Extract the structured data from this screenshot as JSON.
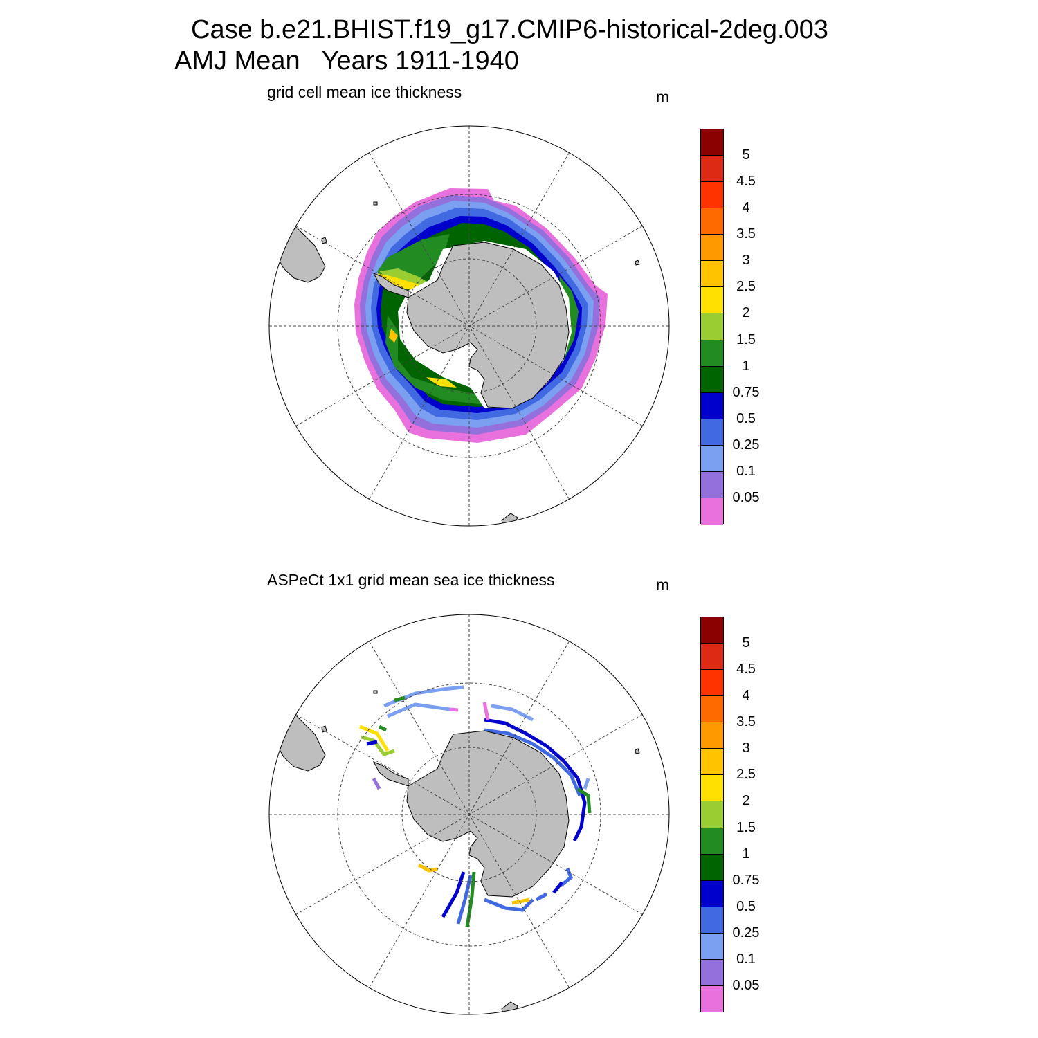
{
  "title": {
    "line1": "Case b.e21.BHIST.f19_g17.CMIP6-historical-2deg.003",
    "line2": "AMJ Mean   Years 1911-1940"
  },
  "colorbar": {
    "colors": [
      "#e871dd",
      "#9370db",
      "#7ba0f2",
      "#4169e1",
      "#0000cd",
      "#006400",
      "#228b22",
      "#9acd32",
      "#ffe000",
      "#ffc300",
      "#ff9900",
      "#ff6a00",
      "#ff3300",
      "#dd2a14",
      "#8b0000"
    ],
    "labels": [
      "0.05",
      "0.1",
      "0.25",
      "0.5",
      "0.75",
      "1",
      "1.5",
      "2",
      "2.5",
      "3",
      "3.5",
      "4",
      "4.5",
      "5"
    ]
  },
  "panels": [
    {
      "title": "grid cell mean ice thickness",
      "units": "m",
      "field": "model"
    },
    {
      "title": "ASPeCt 1x1 grid mean sea ice thickness",
      "units": "m",
      "field": "observations"
    }
  ],
  "land_color": "#bebebe"
}
